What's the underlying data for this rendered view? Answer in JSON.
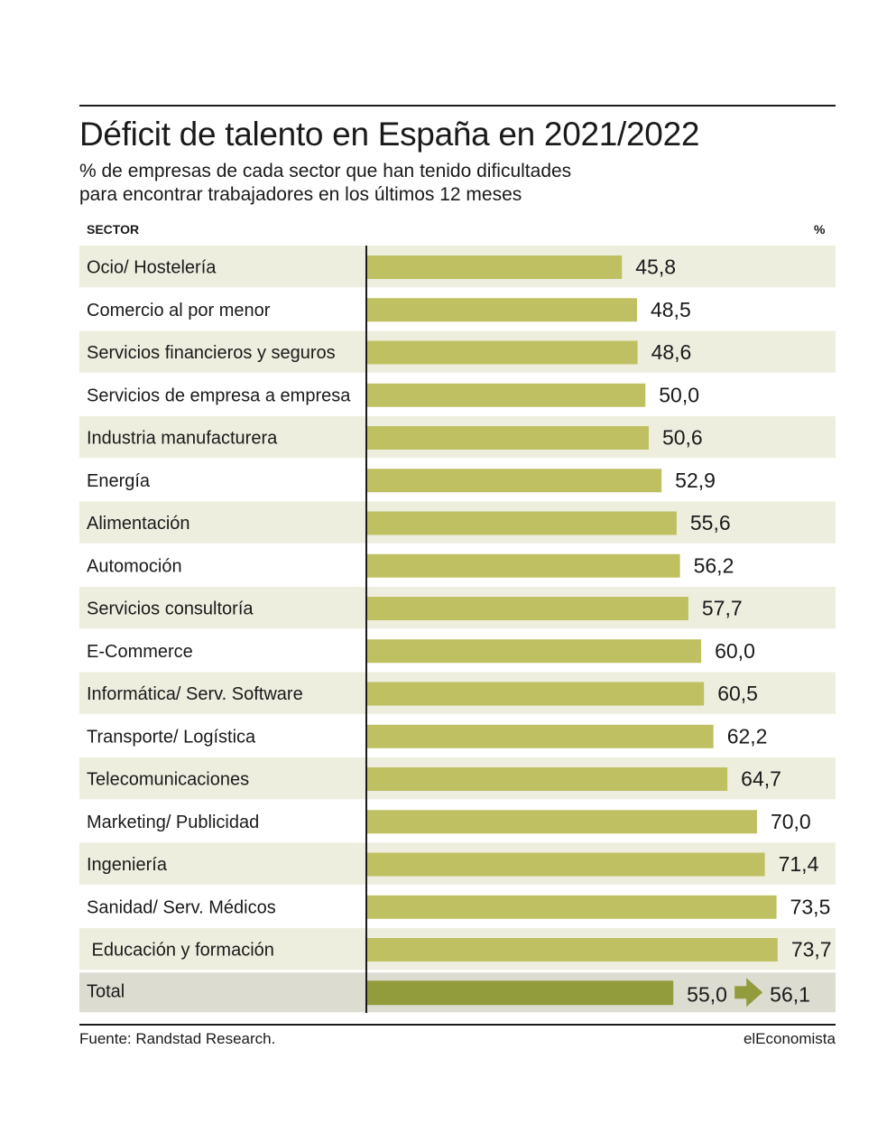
{
  "title": "Déficit de talento en España en 2021/2022",
  "subtitle_line1": "% de empresas de cada sector que han tenido dificultades",
  "subtitle_line2": "para encontrar trabajadores en los últimos 12 meses",
  "col_sector": "SECTOR",
  "col_percent": "%",
  "source": "Fuente: Randstad Research.",
  "brand": "elEconomista",
  "colors": {
    "bar": "#bfc061",
    "total_bar": "#939c3c",
    "row_band": "#eeeedf",
    "total_band": "#dcdcd1",
    "arrow": "#939c3c"
  },
  "chart_data": {
    "type": "bar",
    "orientation": "horizontal",
    "categories": [
      "Ocio/ Hostelería",
      "Comercio al por menor",
      "Servicios financieros y seguros",
      "Servicios de empresa a empresa",
      "Industria manufacturera",
      "Energía",
      "Alimentación",
      "Automoción",
      "Servicios consultoría",
      "E-Commerce",
      "Informática/ Serv. Software",
      "Transporte/ Logística",
      "Telecomunicaciones",
      "Marketing/ Publicidad",
      "Ingeniería",
      "Sanidad/ Serv. Médicos",
      " Educación y formación"
    ],
    "values": [
      45.8,
      48.5,
      48.6,
      50.0,
      50.6,
      52.9,
      55.6,
      56.2,
      57.7,
      60.0,
      60.5,
      62.2,
      64.7,
      70.0,
      71.4,
      73.5,
      73.7
    ],
    "value_labels": [
      "45,8",
      "48,5",
      "48,6",
      "50,0",
      "50,6",
      "52,9",
      "55,6",
      "56,2",
      "57,7",
      "60,0",
      "60,5",
      "62,2",
      "64,7",
      "70,0",
      "71,4",
      "73,5",
      "73,7"
    ],
    "total": {
      "label": "Total",
      "value": 55.0,
      "value_label": "55,0",
      "new_value": 56.1,
      "new_value_label": "56,1"
    },
    "xlim": [
      0,
      100
    ],
    "grid": false,
    "legend": "none"
  }
}
